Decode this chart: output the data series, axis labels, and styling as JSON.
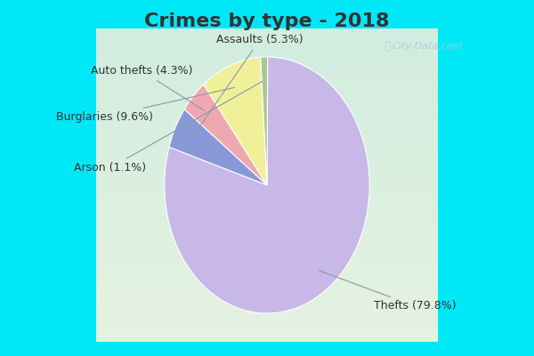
{
  "title": "Crimes by type - 2018",
  "slices": [
    {
      "label": "Thefts",
      "pct": 79.8,
      "color": "#c8b8e8"
    },
    {
      "label": "Assaults",
      "pct": 5.3,
      "color": "#8898d8"
    },
    {
      "label": "Auto thefts",
      "pct": 4.3,
      "color": "#f0a8b0"
    },
    {
      "label": "Burglaries",
      "pct": 9.6,
      "color": "#f0f098"
    },
    {
      "label": "Arson",
      "pct": 1.1,
      "color": "#a8c890"
    }
  ],
  "bg_color_top": "#00e8f8",
  "bg_color_inner_top": "#d0eee8",
  "bg_color_inner_bottom": "#e8f0e0",
  "watermark": "City-Data.com",
  "title_fontsize": 16,
  "label_fontsize": 9,
  "title_color": "#333333"
}
